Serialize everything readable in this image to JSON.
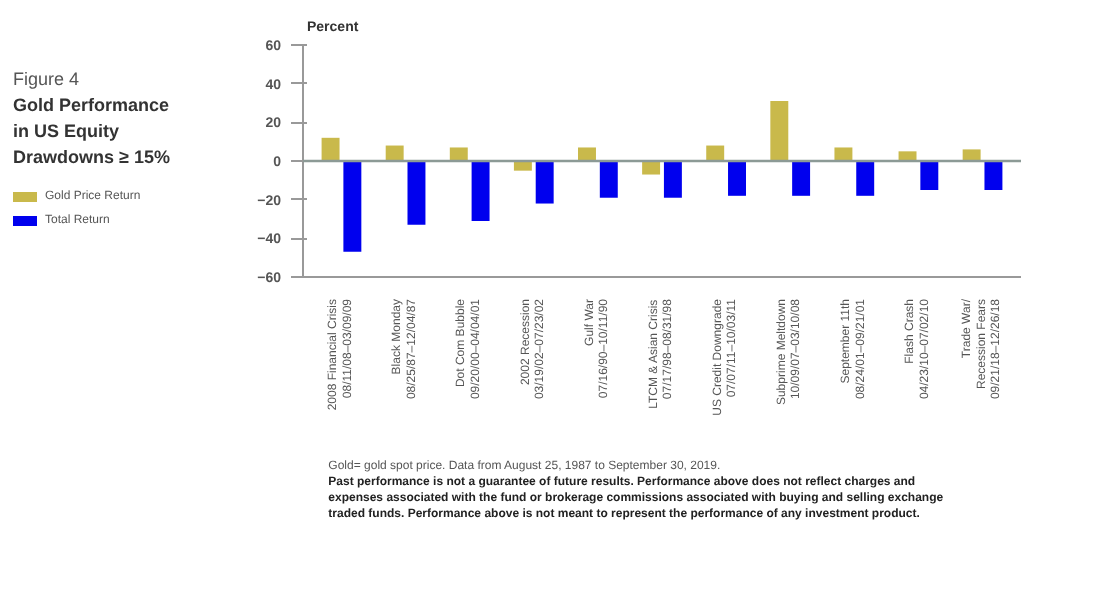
{
  "chart_data": {
    "type": "bar",
    "subtitle": "Figure 4",
    "title": "Gold Performance in US Equity Drawdowns ≥ 15%",
    "ylabel": "Percent",
    "categories": [
      "2008 Financial Crisis\n08/11/08–03/09/09",
      "Black Monday\n08/25/87–12/04/87",
      "Dot Com Bubble\n09/20/00–04/04/01",
      "2002 Recession\n03/19/02–07/23/02",
      "Gulf War\n07/16/90–10/11/90",
      "LTCM & Asian Crisis\n07/17/98–08/31/98",
      "US Credit Downgrade\n07/07/11–10/03/11",
      "Subprime Meltdown\n10/09/07–03/10/08",
      "September 11th\n08/24/01–09/21/01",
      "Flash Crash\n04/23/10–07/02/10",
      "Trade War/\nRecession Fears\n09/21/18–12/26/18"
    ],
    "series": [
      {
        "name": "Gold Price Return",
        "color": "#c9b94b",
        "values": [
          12,
          8,
          7,
          -5,
          7,
          -7,
          8,
          31,
          7,
          5,
          6
        ]
      },
      {
        "name": "Total Return",
        "color": "#0000ee",
        "values": [
          -47,
          -33,
          -31,
          -22,
          -19,
          -19,
          -18,
          -18,
          -18,
          -15,
          -15
        ]
      }
    ],
    "ylim": [
      -60,
      60
    ],
    "yticks": [
      -60,
      -40,
      -20,
      0,
      20,
      40,
      60
    ],
    "ref_lines": [
      {
        "axis": "y",
        "value": 0,
        "label": null,
        "color": "#8c9a96"
      }
    ],
    "grid": false,
    "legend": "left",
    "annotations": [
      "Gold= gold spot price. Data from August 25, 1987 to September 30, 2019.",
      "Past performance is not a guarantee of future results. Performance above does not reflect charges and expenses associated with the fund or brokerage commissions associated with buying and selling exchange traded funds. Performance above is not meant to represent the performance of any investment product."
    ]
  }
}
